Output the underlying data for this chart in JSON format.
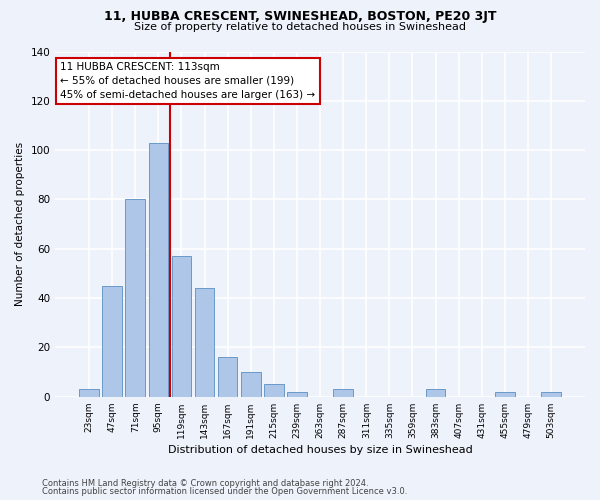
{
  "title": "11, HUBBA CRESCENT, SWINESHEAD, BOSTON, PE20 3JT",
  "subtitle": "Size of property relative to detached houses in Swineshead",
  "xlabel": "Distribution of detached houses by size in Swineshead",
  "ylabel": "Number of detached properties",
  "bar_labels": [
    "23sqm",
    "47sqm",
    "71sqm",
    "95sqm",
    "119sqm",
    "143sqm",
    "167sqm",
    "191sqm",
    "215sqm",
    "239sqm",
    "263sqm",
    "287sqm",
    "311sqm",
    "335sqm",
    "359sqm",
    "383sqm",
    "407sqm",
    "431sqm",
    "455sqm",
    "479sqm",
    "503sqm"
  ],
  "bar_values": [
    3,
    45,
    80,
    103,
    57,
    44,
    16,
    10,
    5,
    2,
    0,
    3,
    0,
    0,
    0,
    3,
    0,
    0,
    2,
    0,
    2
  ],
  "bar_color": "#aec6e8",
  "bar_edgecolor": "#5a8fc2",
  "vline_color": "#cc0000",
  "vline_x_index": 3.5,
  "ylim": [
    0,
    140
  ],
  "yticks": [
    0,
    20,
    40,
    60,
    80,
    100,
    120,
    140
  ],
  "annotation_text": "11 HUBBA CRESCENT: 113sqm\n← 55% of detached houses are smaller (199)\n45% of semi-detached houses are larger (163) →",
  "annotation_box_color": "#ffffff",
  "annotation_box_edgecolor": "#cc0000",
  "background_color": "#eef2fb",
  "grid_color": "#ffffff",
  "footnote1": "Contains HM Land Registry data © Crown copyright and database right 2024.",
  "footnote2": "Contains public sector information licensed under the Open Government Licence v3.0."
}
